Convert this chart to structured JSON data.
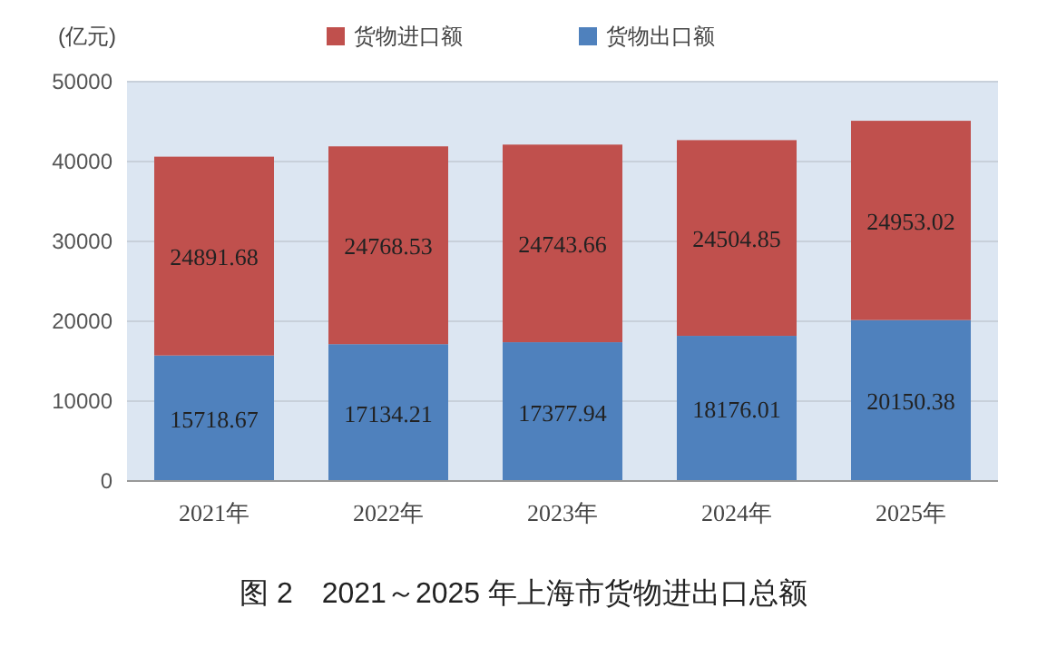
{
  "chart_data": {
    "type": "bar",
    "stacked": true,
    "title": "图 2　2021～2025 年上海市货物进出口总额",
    "ylabel": "(亿元)",
    "categories": [
      "2021年",
      "2022年",
      "2023年",
      "2024年",
      "2025年"
    ],
    "series": [
      {
        "name": "货物出口额",
        "color": "#4f81bd",
        "values": [
          15718.67,
          17134.21,
          17377.94,
          18176.01,
          20150.38
        ]
      },
      {
        "name": "货物进口额",
        "color": "#c0504d",
        "values": [
          24891.68,
          24768.53,
          24743.66,
          24504.85,
          24953.02
        ]
      }
    ],
    "ylim": [
      0,
      50000
    ],
    "yticks": [
      0,
      10000,
      20000,
      30000,
      40000,
      50000
    ],
    "grid": "y",
    "legend": "top",
    "data_labels": true
  }
}
